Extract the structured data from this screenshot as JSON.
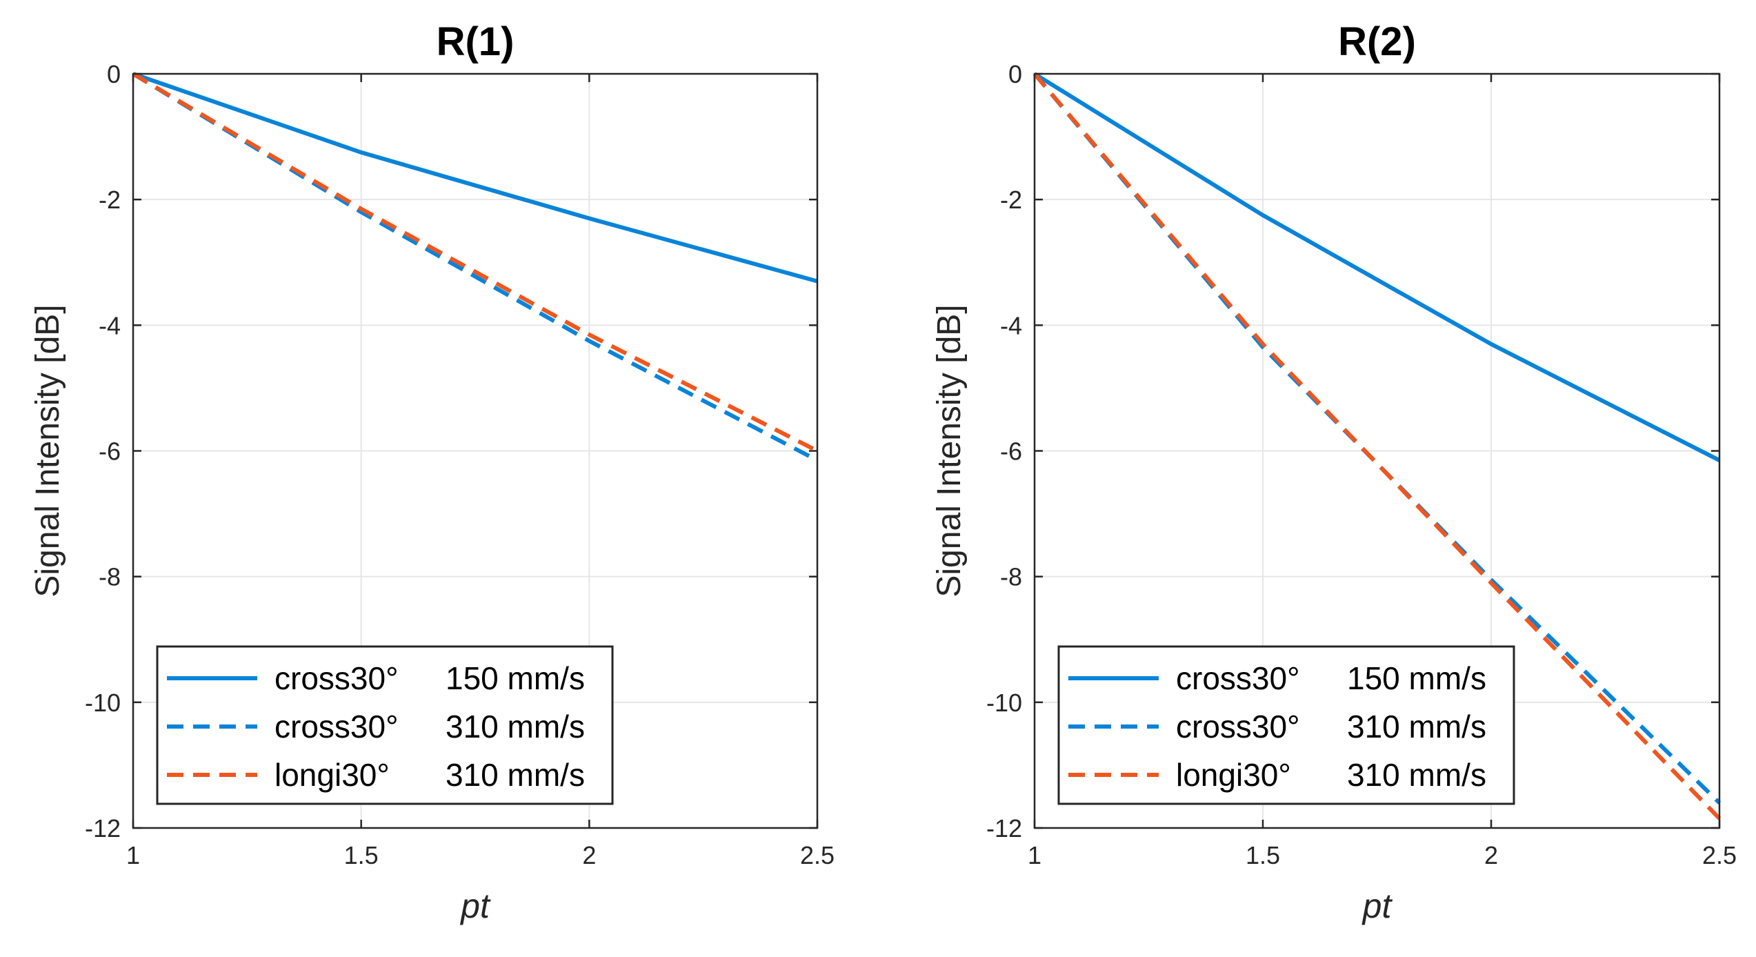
{
  "chart_data": [
    {
      "type": "line",
      "title": "R(1)",
      "xlabel": "pt",
      "ylabel": "Signal Intensity [dB]",
      "x": [
        1,
        1.5,
        2,
        2.5
      ],
      "xlim": [
        1,
        2.5
      ],
      "ylim": [
        -12,
        0
      ],
      "xticks": [
        "1",
        "1.5",
        "2",
        "2.5"
      ],
      "yticks": [
        "0",
        "-2",
        "-4",
        "-6",
        "-8",
        "-10",
        "-12"
      ],
      "grid": true,
      "legend_position": "bottom-left",
      "series": [
        {
          "name": "cross30°  150 mm/s",
          "label_a": "cross30°",
          "label_b": "150 mm/s",
          "color": "#0a84d9",
          "style": "solid",
          "values": [
            0,
            -1.25,
            -2.3,
            -3.3
          ]
        },
        {
          "name": "cross30°  310 mm/s",
          "label_a": "cross30°",
          "label_b": "310 mm/s",
          "color": "#0a84d9",
          "style": "dashed",
          "values": [
            0,
            -2.2,
            -4.25,
            -6.15
          ]
        },
        {
          "name": "longi30°  310 mm/s",
          "label_a": "longi30°",
          "label_b": "310 mm/s",
          "color": "#f0561d",
          "style": "dashed",
          "values": [
            0,
            -2.15,
            -4.15,
            -6.0
          ]
        }
      ]
    },
    {
      "type": "line",
      "title": "R(2)",
      "xlabel": "pt",
      "ylabel": "Signal Intensity [dB]",
      "x": [
        1,
        1.5,
        2,
        2.5
      ],
      "xlim": [
        1,
        2.5
      ],
      "ylim": [
        -12,
        0
      ],
      "xticks": [
        "1",
        "1.5",
        "2",
        "2.5"
      ],
      "yticks": [
        "0",
        "-2",
        "-4",
        "-6",
        "-8",
        "-10",
        "-12"
      ],
      "grid": true,
      "legend_position": "bottom-left",
      "series": [
        {
          "name": "cross30°  150 mm/s",
          "label_a": "cross30°",
          "label_b": "150 mm/s",
          "color": "#0a84d9",
          "style": "solid",
          "values": [
            0,
            -2.25,
            -4.3,
            -6.15
          ]
        },
        {
          "name": "cross30°  310 mm/s",
          "label_a": "cross30°",
          "label_b": "310 mm/s",
          "color": "#0a84d9",
          "style": "dashed",
          "values": [
            0,
            -4.35,
            -8.05,
            -11.6
          ]
        },
        {
          "name": "longi30°  310 mm/s",
          "label_a": "longi30°",
          "label_b": "310 mm/s",
          "color": "#f0561d",
          "style": "dashed",
          "values": [
            0,
            -4.3,
            -8.1,
            -11.85
          ]
        }
      ]
    }
  ]
}
